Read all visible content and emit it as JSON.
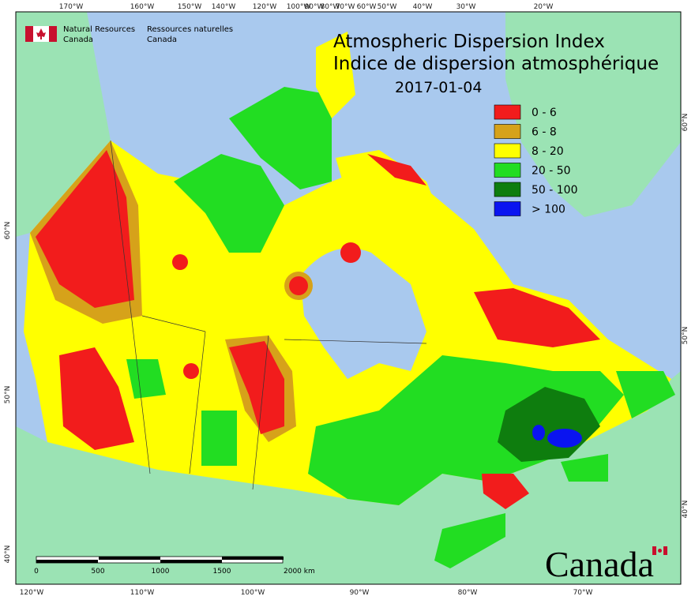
{
  "header": {
    "agency_en": [
      "Natural Resources",
      "Canada"
    ],
    "agency_fr": [
      "Ressources naturelles",
      "Canada"
    ],
    "title_en": "Atmospheric Dispersion Index",
    "title_fr": "Indice de dispersion atmosphérique",
    "date": "2017-01-04"
  },
  "legend": [
    {
      "label": "0 - 6",
      "color": "#f21c1c"
    },
    {
      "label": "6 - 8",
      "color": "#d6a21a"
    },
    {
      "label": "8 - 20",
      "color": "#ffff00"
    },
    {
      "label": "20 - 50",
      "color": "#22dd22"
    },
    {
      "label": "50 - 100",
      "color": "#0e7d0e"
    },
    {
      "label": "> 100",
      "color": "#0a14f0"
    }
  ],
  "graticule": {
    "top": [
      "170°W",
      "160°W",
      "150°W",
      "140°W",
      "120°W",
      "100°W",
      "90°W",
      "80°W",
      "70°W",
      "60°W",
      "50°W",
      "40°W",
      "30°W",
      "20°W"
    ],
    "bottom": [
      "120°W",
      "110°W",
      "100°W",
      "90°W",
      "80°W",
      "70°W"
    ],
    "left": [
      "60°N",
      "50°N",
      "40°N"
    ],
    "right": [
      "60°N",
      "50°N",
      "40°N"
    ]
  },
  "scale_bar": {
    "labels": [
      "0",
      "500",
      "1000",
      "1500",
      "2000 km"
    ]
  },
  "wordmark": "Canada"
}
